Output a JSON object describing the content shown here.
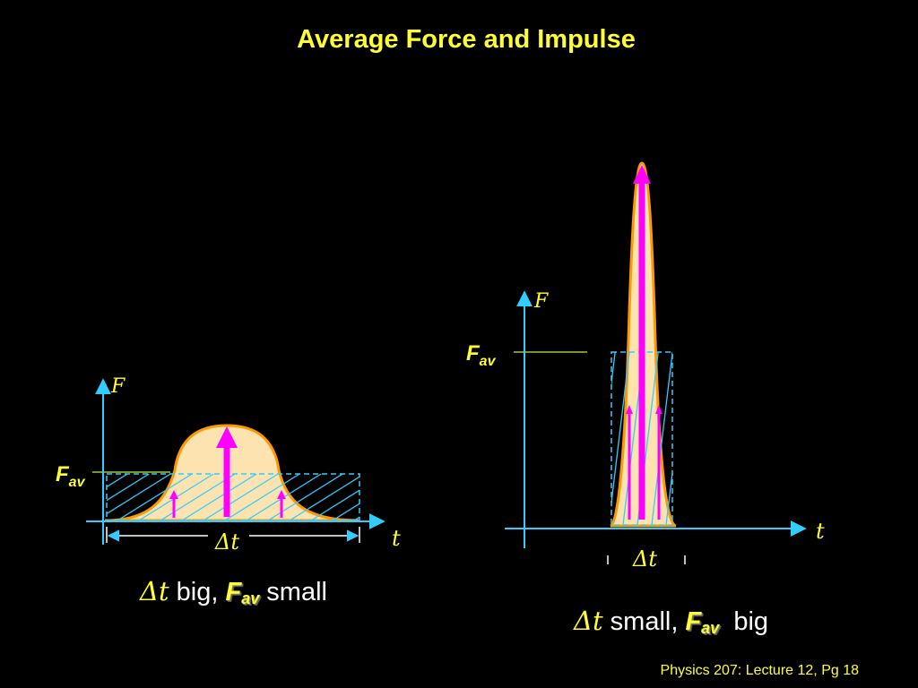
{
  "title": "Average Force and Impulse",
  "footer": "Physics 207: Lecture 12, Pg 18",
  "colors": {
    "background": "#000000",
    "text": "#ffff33",
    "axis": "#33ccff",
    "curve_fill": "#fde3b0",
    "curve_edge": "#ff9900",
    "arrow": "#ff00ff",
    "hatch": "#33ccff",
    "fav_line": "#99cc33"
  },
  "left_diagram": {
    "y_axis_label": "F",
    "x_axis_label": "t",
    "fav_label": "F",
    "fav_sub": "av",
    "dt_label": "Δt",
    "caption": {
      "dt": "Δt",
      "big": " big, ",
      "fav": "F",
      "fav_sub": "av",
      "small": " small"
    }
  },
  "right_diagram": {
    "y_axis_label": "F",
    "x_axis_label": "t",
    "fav_label": "F",
    "fav_sub": "av",
    "dt_label": "Δt",
    "caption": {
      "dt": "Δt",
      "small": " small, ",
      "fav": "F",
      "fav_sub": "av",
      "big": "  big"
    }
  }
}
